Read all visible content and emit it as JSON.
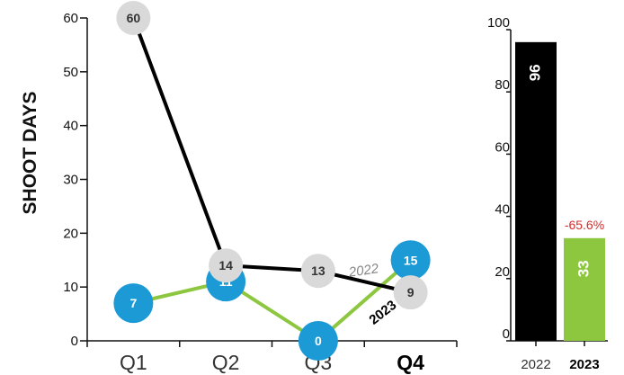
{
  "chart_data": [
    {
      "type": "line",
      "ylabel": "SHOOT DAYS",
      "ylim": [
        0,
        60
      ],
      "yticks": [
        0,
        10,
        20,
        30,
        40,
        50,
        60
      ],
      "categories": [
        "Q1",
        "Q2",
        "Q3",
        "Q4"
      ],
      "highlight_category": "Q4",
      "series": [
        {
          "name": "2022",
          "values": [
            60,
            14,
            13,
            9
          ],
          "color": "#000000",
          "marker_color": "#d9d9d9",
          "label_color": "#333333"
        },
        {
          "name": "2023",
          "values": [
            7,
            11,
            0,
            15
          ],
          "color": "#8dc63f",
          "marker_color": "#1c9ad6",
          "label_color": "#ffffff"
        }
      ],
      "grid": false
    },
    {
      "type": "bar",
      "categories": [
        "2022",
        "2023"
      ],
      "highlight_category": "2023",
      "values": [
        96,
        33
      ],
      "colors": [
        "#000000",
        "#8dc63f"
      ],
      "ylim": [
        0,
        100
      ],
      "yticks": [
        0,
        20,
        40,
        60,
        80,
        100
      ],
      "annotations": [
        {
          "category": "2023",
          "text": "-65.6%",
          "color": "#d42b2b"
        }
      ],
      "grid": false
    }
  ]
}
